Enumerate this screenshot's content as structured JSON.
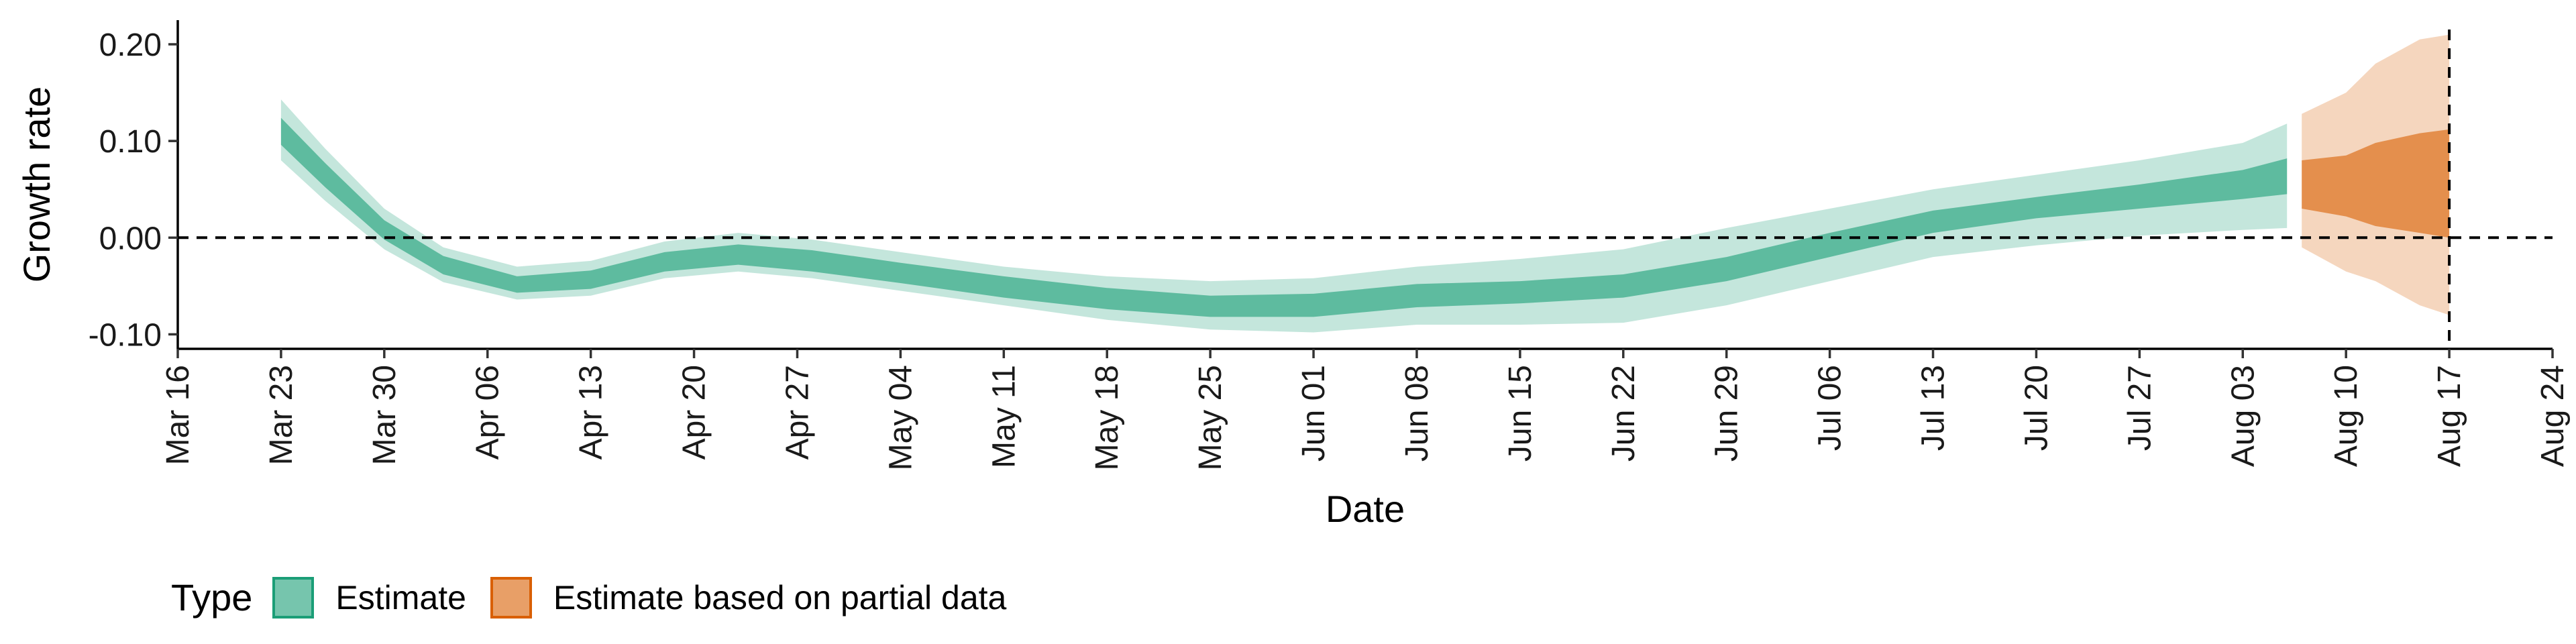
{
  "chart_data": {
    "type": "area",
    "xlabel": "Date",
    "ylabel": "Growth rate",
    "x_range": [
      "2020-03-16",
      "2020-08-24"
    ],
    "x_ticks": [
      "Mar 16",
      "Mar 23",
      "Mar 30",
      "Apr 06",
      "Apr 13",
      "Apr 20",
      "Apr 27",
      "May 04",
      "May 11",
      "May 18",
      "May 25",
      "Jun 01",
      "Jun 08",
      "Jun 15",
      "Jun 22",
      "Jun 29",
      "Jul 06",
      "Jul 13",
      "Jul 20",
      "Jul 27",
      "Aug 03",
      "Aug 10",
      "Aug 17",
      "Aug 24"
    ],
    "ylim": [
      -0.115,
      0.225
    ],
    "y_ticks": [
      -0.1,
      0.0,
      0.1,
      0.2
    ],
    "y_tick_labels": [
      "-0.10",
      "0.00",
      "0.10",
      "0.20"
    ],
    "reference_lines": {
      "horizontal_y": 0.0,
      "vertical_date": "2020-08-17"
    },
    "grid": false,
    "legend_title": "Type",
    "legend_position": "bottom",
    "series": [
      {
        "name": "Estimate",
        "color": "#1b9e77",
        "points": [
          {
            "date": "2020-03-23",
            "outer": [
              0.08,
              0.143
            ],
            "inner": [
              0.096,
              0.124
            ]
          },
          {
            "date": "2020-03-26",
            "outer": [
              0.038,
              0.092
            ],
            "inner": [
              0.052,
              0.077
            ]
          },
          {
            "date": "2020-03-30",
            "outer": [
              -0.012,
              0.03
            ],
            "inner": [
              -0.002,
              0.018
            ]
          },
          {
            "date": "2020-04-03",
            "outer": [
              -0.046,
              -0.01
            ],
            "inner": [
              -0.038,
              -0.019
            ]
          },
          {
            "date": "2020-04-08",
            "outer": [
              -0.064,
              -0.03
            ],
            "inner": [
              -0.057,
              -0.04
            ]
          },
          {
            "date": "2020-04-13",
            "outer": [
              -0.06,
              -0.024
            ],
            "inner": [
              -0.053,
              -0.034
            ]
          },
          {
            "date": "2020-04-18",
            "outer": [
              -0.042,
              -0.004
            ],
            "inner": [
              -0.035,
              -0.015
            ]
          },
          {
            "date": "2020-04-23",
            "outer": [
              -0.035,
              0.005
            ],
            "inner": [
              -0.028,
              -0.007
            ]
          },
          {
            "date": "2020-04-28",
            "outer": [
              -0.042,
              -0.002
            ],
            "inner": [
              -0.035,
              -0.013
            ]
          },
          {
            "date": "2020-05-04",
            "outer": [
              -0.055,
              -0.015
            ],
            "inner": [
              -0.047,
              -0.026
            ]
          },
          {
            "date": "2020-05-11",
            "outer": [
              -0.07,
              -0.03
            ],
            "inner": [
              -0.062,
              -0.04
            ]
          },
          {
            "date": "2020-05-18",
            "outer": [
              -0.085,
              -0.04
            ],
            "inner": [
              -0.074,
              -0.052
            ]
          },
          {
            "date": "2020-05-25",
            "outer": [
              -0.095,
              -0.045
            ],
            "inner": [
              -0.082,
              -0.06
            ]
          },
          {
            "date": "2020-06-01",
            "outer": [
              -0.098,
              -0.042
            ],
            "inner": [
              -0.082,
              -0.058
            ]
          },
          {
            "date": "2020-06-08",
            "outer": [
              -0.09,
              -0.03
            ],
            "inner": [
              -0.072,
              -0.048
            ]
          },
          {
            "date": "2020-06-15",
            "outer": [
              -0.09,
              -0.022
            ],
            "inner": [
              -0.068,
              -0.045
            ]
          },
          {
            "date": "2020-06-22",
            "outer": [
              -0.088,
              -0.012
            ],
            "inner": [
              -0.062,
              -0.038
            ]
          },
          {
            "date": "2020-06-29",
            "outer": [
              -0.07,
              0.01
            ],
            "inner": [
              -0.045,
              -0.02
            ]
          },
          {
            "date": "2020-07-06",
            "outer": [
              -0.045,
              0.03
            ],
            "inner": [
              -0.02,
              0.005
            ]
          },
          {
            "date": "2020-07-13",
            "outer": [
              -0.02,
              0.05
            ],
            "inner": [
              0.005,
              0.028
            ]
          },
          {
            "date": "2020-07-20",
            "outer": [
              -0.008,
              0.065
            ],
            "inner": [
              0.02,
              0.042
            ]
          },
          {
            "date": "2020-07-27",
            "outer": [
              0.002,
              0.08
            ],
            "inner": [
              0.03,
              0.055
            ]
          },
          {
            "date": "2020-08-03",
            "outer": [
              0.008,
              0.098
            ],
            "inner": [
              0.04,
              0.07
            ]
          },
          {
            "date": "2020-08-06",
            "outer": [
              0.01,
              0.118
            ],
            "inner": [
              0.045,
              0.082
            ]
          }
        ]
      },
      {
        "name": "Estimate based on partial data",
        "color": "#d95f02",
        "points": [
          {
            "date": "2020-08-07",
            "outer": [
              -0.01,
              0.128
            ],
            "inner": [
              0.03,
              0.08
            ]
          },
          {
            "date": "2020-08-10",
            "outer": [
              -0.035,
              0.15
            ],
            "inner": [
              0.022,
              0.085
            ]
          },
          {
            "date": "2020-08-12",
            "outer": [
              -0.045,
              0.18
            ],
            "inner": [
              0.012,
              0.098
            ]
          },
          {
            "date": "2020-08-15",
            "outer": [
              -0.07,
              0.205
            ],
            "inner": [
              0.005,
              0.108
            ]
          },
          {
            "date": "2020-08-17",
            "outer": [
              -0.08,
              0.21
            ],
            "inner": [
              0.0,
              0.112
            ]
          }
        ]
      }
    ]
  }
}
